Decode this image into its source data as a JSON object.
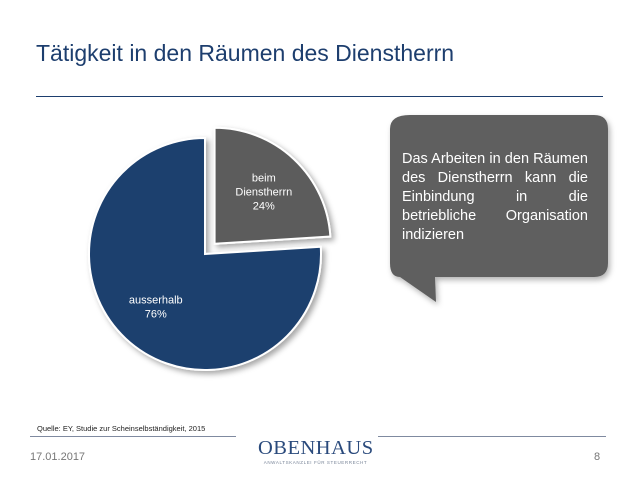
{
  "slide": {
    "title": "Tätigkeit in den Räumen des Dienstherrn",
    "callout": "Das Arbeiten in den Räumen des Dienstherrn kann die Einbindung in die betriebliche Organisation indizieren",
    "source": "Quelle: EY, Studie zur Scheinselbständigkeit, 2015",
    "date": "17.01.2017",
    "page": "8"
  },
  "logo": {
    "name": "OBENHAUS",
    "subtitle": "ANWALTSKANZLEI FÜR STEUERRECHT"
  },
  "colors": {
    "title": "#1d3e6e",
    "slice_outside": "#1c3f6e",
    "slice_inside": "#5c5c5c",
    "callout": "#5e5e5e"
  },
  "chart_data": {
    "type": "pie",
    "categories": [
      "beim Dienstherrn",
      "ausserhalb"
    ],
    "values": [
      24,
      76
    ],
    "unit": "%",
    "exploded": "beim Dienstherrn",
    "legend": "none",
    "data_labels": [
      {
        "name_lines": [
          "beim",
          "Dienstherrn"
        ],
        "pct": "24%"
      },
      {
        "name_lines": [
          "ausserhalb"
        ],
        "pct": "76%"
      }
    ]
  }
}
